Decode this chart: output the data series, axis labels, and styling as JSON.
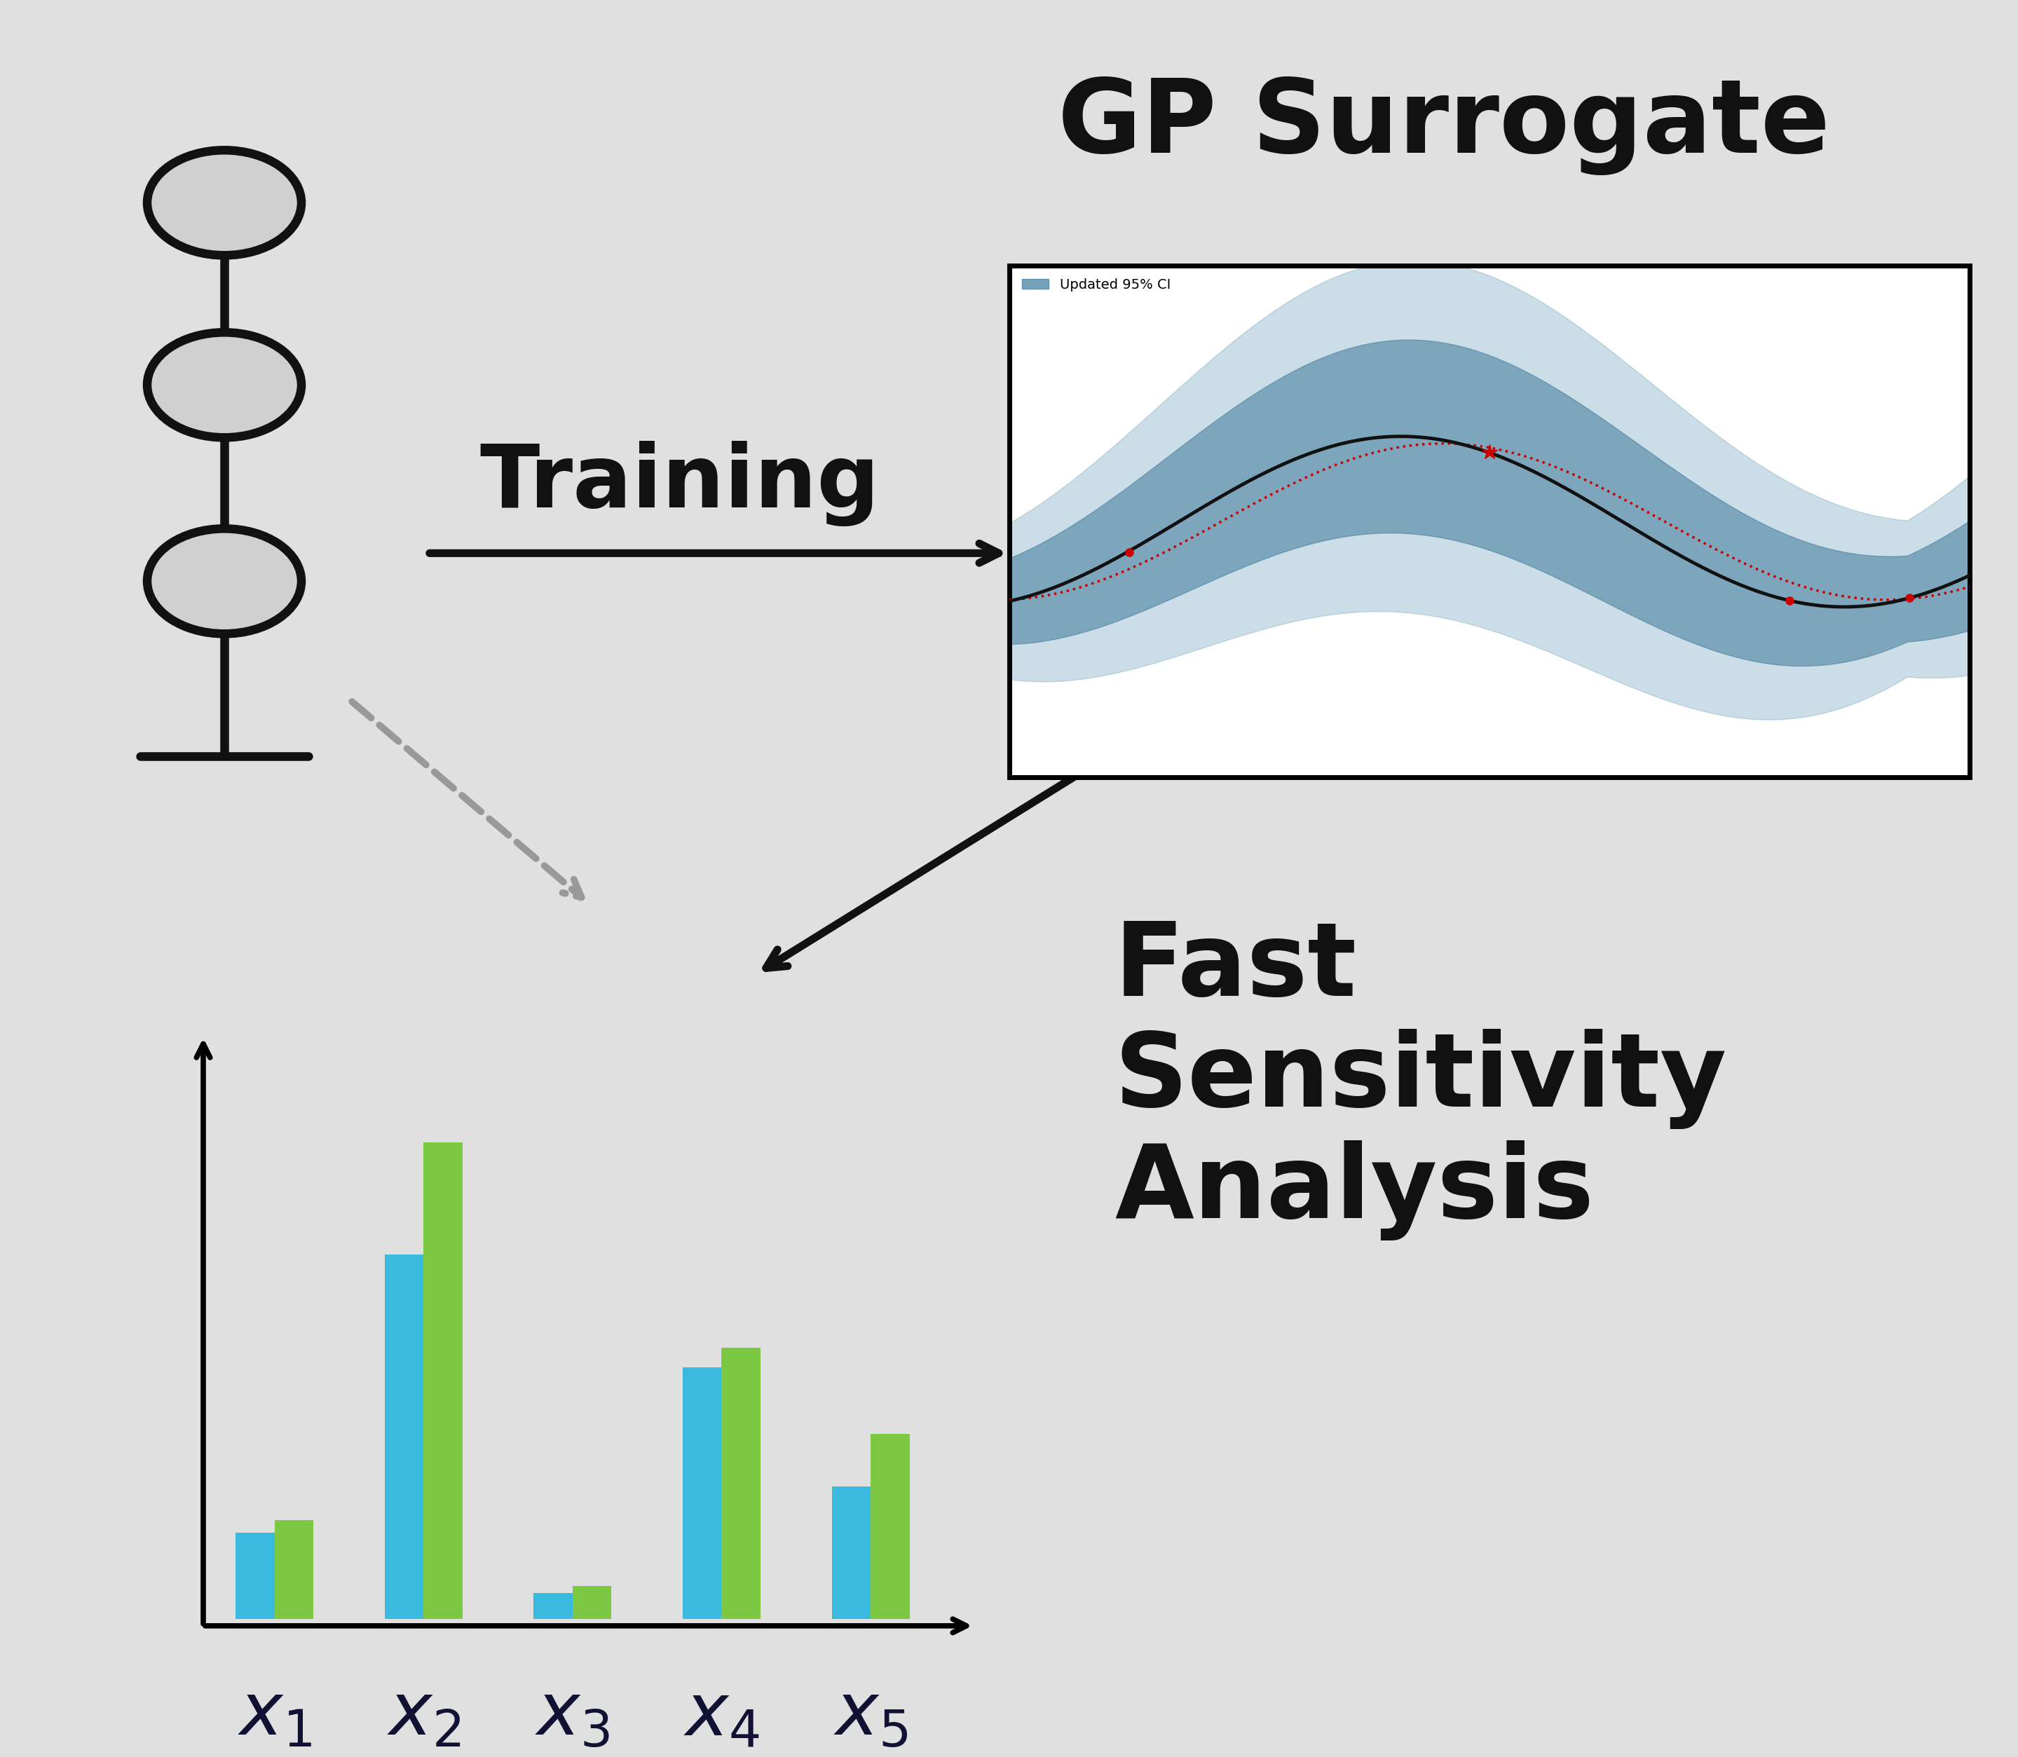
{
  "bg_color": "#e0e0e0",
  "gp_surrogate_label": "GP Surrogate",
  "training_label": "Training",
  "fast_sensitivity_label": "Fast\nSensitivity\nAnalysis",
  "legend_label": "Updated 95% CI",
  "bar_blue": [
    0.13,
    0.55,
    0.04,
    0.38,
    0.2
  ],
  "bar_green": [
    0.15,
    0.72,
    0.05,
    0.41,
    0.28
  ],
  "bar_categories": [
    "$x_1$",
    "$x_2$",
    "$x_3$",
    "$x_4$",
    "$x_5$"
  ],
  "bar_blue_color": "#3bbae0",
  "bar_green_color": "#7dc843",
  "ci_outer_color": "#6b9fb8",
  "ci_inner_color": "#3d7a9c",
  "mean_line_color": "#111111",
  "red_dot_color": "#cc0000",
  "circle_fill": "#d0d0d0",
  "circle_edge": "#111111",
  "arrow_color": "#111111",
  "dashed_arrow_color": "#999999",
  "building_lw": 9
}
